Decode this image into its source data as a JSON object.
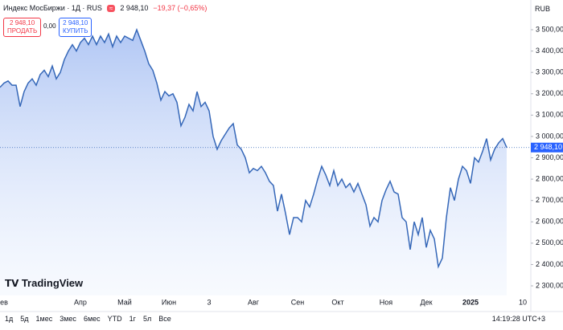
{
  "header": {
    "symbol": "Индекс МосБиржи · 1Д · RUS",
    "price": "2 948,10",
    "change": "−19,37 (−0,65%)",
    "currency": "RUB",
    "sell_price": "2 948,10",
    "sell": "ПРОДАТЬ",
    "spread": "0,00",
    "buy_price": "2 948,10",
    "buy": "КУПИТЬ"
  },
  "logo": "TradingView",
  "toolbar": {
    "ranges": [
      "1д",
      "5д",
      "1мес",
      "3мес",
      "6мес",
      "YTD",
      "1г",
      "5л",
      "Все"
    ],
    "clock": "14:19:28 UTC+3"
  },
  "chart_data": {
    "type": "area",
    "color": "#3567b8",
    "grid": false,
    "ylim": [
      2255,
      3564
    ],
    "yticks": [
      {
        "value": 2300,
        "label": "2 300,00"
      },
      {
        "value": 2400,
        "label": "2 400,00"
      },
      {
        "value": 2500,
        "label": "2 500,00"
      },
      {
        "value": 2600,
        "label": "2 600,00"
      },
      {
        "value": 2700,
        "label": "2 700,00"
      },
      {
        "value": 2800,
        "label": "2 800,00"
      },
      {
        "value": 2900,
        "label": "2 900,00"
      },
      {
        "value": 3000,
        "label": "3 000,00"
      },
      {
        "value": 3100,
        "label": "3 100,00"
      },
      {
        "value": 3200,
        "label": "3 200,00"
      },
      {
        "value": 3300,
        "label": "3 300,00"
      },
      {
        "value": 3400,
        "label": "3 400,00"
      },
      {
        "value": 3500,
        "label": "3 500,00"
      }
    ],
    "price_line": {
      "value": 2948.1,
      "label": "2 948,10"
    },
    "categories": [
      null,
      "ев",
      null,
      null,
      null,
      null,
      null,
      null,
      null,
      null,
      null,
      null,
      null,
      null,
      null,
      null,
      null,
      null,
      null,
      null,
      "Апр",
      null,
      null,
      null,
      null,
      null,
      null,
      null,
      null,
      null,
      null,
      "Май",
      null,
      null,
      null,
      null,
      null,
      null,
      null,
      null,
      null,
      null,
      "Июн",
      null,
      null,
      null,
      null,
      null,
      null,
      null,
      null,
      null,
      "3",
      null,
      null,
      null,
      null,
      null,
      null,
      null,
      null,
      null,
      null,
      "Авг",
      null,
      null,
      null,
      null,
      null,
      null,
      null,
      null,
      null,
      null,
      "Сен",
      null,
      null,
      null,
      null,
      null,
      null,
      null,
      null,
      null,
      "Окт",
      null,
      null,
      null,
      null,
      null,
      null,
      null,
      null,
      null,
      null,
      null,
      "Ноя",
      null,
      null,
      null,
      null,
      null,
      null,
      null,
      null,
      null,
      "Дек",
      null,
      null,
      null,
      null,
      null,
      null,
      null,
      null,
      null,
      null,
      "2025",
      null,
      null,
      null,
      null,
      null,
      null,
      null,
      null,
      null,
      null,
      null,
      null,
      "10",
      null
    ],
    "values": [
      3230,
      3250,
      3260,
      3240,
      3240,
      3140,
      3210,
      3250,
      3270,
      3240,
      3290,
      3310,
      3280,
      3330,
      3270,
      3300,
      3360,
      3400,
      3430,
      3400,
      3440,
      3460,
      3430,
      3470,
      3430,
      3470,
      3440,
      3480,
      3420,
      3470,
      3440,
      3470,
      3460,
      3450,
      3500,
      3450,
      3400,
      3340,
      3310,
      3250,
      3170,
      3210,
      3190,
      3200,
      3160,
      3050,
      3090,
      3150,
      3120,
      3210,
      3140,
      3160,
      3120,
      3000,
      2940,
      2980,
      3010,
      3040,
      3060,
      2960,
      2940,
      2900,
      2830,
      2850,
      2840,
      2860,
      2830,
      2790,
      2770,
      2650,
      2730,
      2640,
      2540,
      2620,
      2620,
      2600,
      2700,
      2670,
      2730,
      2800,
      2860,
      2820,
      2770,
      2840,
      2770,
      2800,
      2760,
      2780,
      2740,
      2780,
      2730,
      2680,
      2580,
      2620,
      2600,
      2700,
      2750,
      2790,
      2740,
      2730,
      2620,
      2600,
      2470,
      2600,
      2540,
      2620,
      2480,
      2560,
      2520,
      2390,
      2430,
      2620,
      2760,
      2700,
      2800,
      2860,
      2840,
      2780,
      2900,
      2880,
      2930,
      2990,
      2890,
      2940,
      2970,
      2990,
      2948.1,
      null,
      null,
      null,
      null,
      null
    ]
  }
}
